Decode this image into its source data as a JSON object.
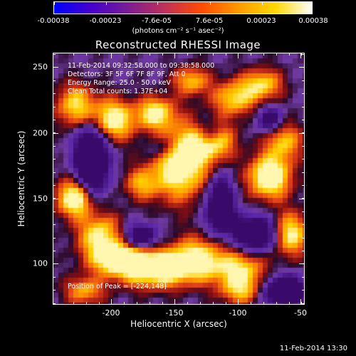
{
  "colorbar": {
    "tick_labels": [
      "-0.00038",
      "-0.00023",
      "-7.6e-05",
      "7.6e-05",
      "0.00023",
      "0.00038"
    ],
    "units": "(photons cm⁻² s⁻¹ asec⁻²)",
    "colors": [
      "#0000ff",
      "#4400cc",
      "#7a1d94",
      "#c0305a",
      "#ff4a00",
      "#ff9a00",
      "#ffd800",
      "#ffffff"
    ]
  },
  "plot": {
    "title": "Reconstructed RHESSI Image",
    "info_lines": [
      "11-Feb-2014 09:32:58.000 to 09:38:58.000",
      "Detectors: 3F 5F 6F 7F 8F 9F, Att 0",
      "Energy Range: 25.0 - 50.0 keV",
      "Clean    Total counts: 1.37E+04"
    ],
    "peak_text": "Position of Peak = [-224,148]",
    "xlabel": "Heliocentric X (arcsec)",
    "ylabel": "Heliocentric Y (arcsec)",
    "xticks": [
      "-200",
      "-150",
      "-100",
      "-50"
    ],
    "yticks": [
      "250",
      "200",
      "150",
      "100"
    ],
    "xlim": [
      -245,
      -50
    ],
    "ylim": [
      70,
      265
    ]
  },
  "footer": {
    "date": "11-Feb-2014 13:30"
  }
}
